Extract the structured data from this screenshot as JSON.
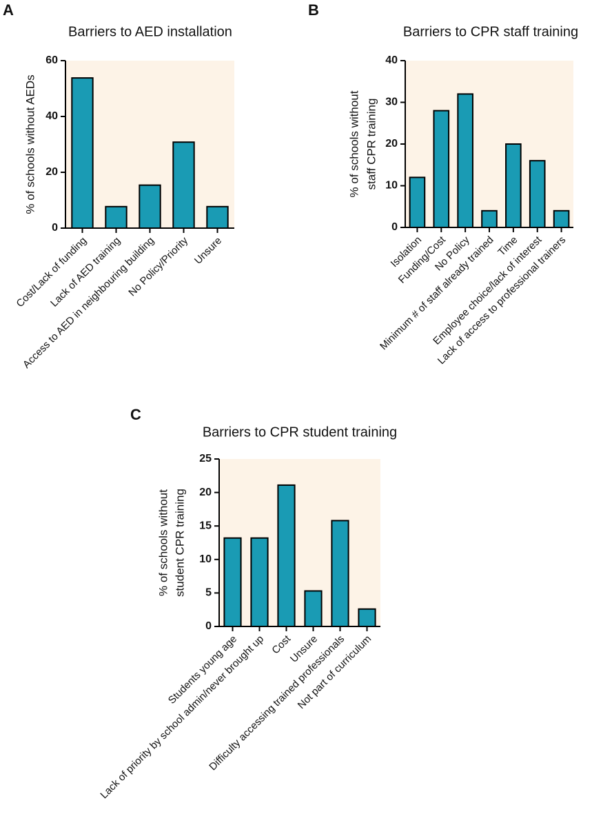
{
  "chart_data": [
    {
      "type": "bar",
      "panel": "A",
      "title": "Barriers to AED installation",
      "y_label": [
        "% of schools without AEDs"
      ],
      "categories": [
        "Cost/Lack of funding",
        "Lack of AED training",
        "Access to AED in neighbouring building",
        "No Policy/Priority",
        "Unsure"
      ],
      "values": [
        53.8,
        7.7,
        15.4,
        30.8,
        7.7
      ],
      "color": "#1a9bb4",
      "background": "#fdf3e7",
      "ylim": [
        0,
        60
      ],
      "yticks": [
        0,
        20,
        40,
        60
      ]
    },
    {
      "type": "bar",
      "panel": "B",
      "title": "Barriers to CPR staff training",
      "y_label": [
        "% of schools without",
        "staff CPR training"
      ],
      "categories": [
        "Isolation",
        "Funding/Cost",
        "No Policy",
        "Minimum # of staff already trained",
        "Time",
        "Employee choice/lack of interest",
        "Lack of access to professional trainers"
      ],
      "values": [
        12,
        28,
        32,
        4,
        20,
        16,
        4
      ],
      "color": "#1a9bb4",
      "background": "#fdf3e7",
      "ylim": [
        0,
        40
      ],
      "yticks": [
        0,
        10,
        20,
        30,
        40
      ]
    },
    {
      "type": "bar",
      "panel": "C",
      "title": "Barriers to CPR student training",
      "y_label": [
        "% of schools without",
        "student CPR training"
      ],
      "categories": [
        "Students young age",
        "Lack of priority by school admin/never brought up",
        "Cost",
        "Unsure",
        "Difficulty accessing trained professionals",
        "Not part of curriculum"
      ],
      "values": [
        13.2,
        13.2,
        21.1,
        5.3,
        15.8,
        2.6
      ],
      "color": "#1a9bb4",
      "background": "#fdf3e7",
      "ylim": [
        0,
        25
      ],
      "yticks": [
        0,
        5,
        10,
        15,
        20,
        25
      ]
    }
  ]
}
